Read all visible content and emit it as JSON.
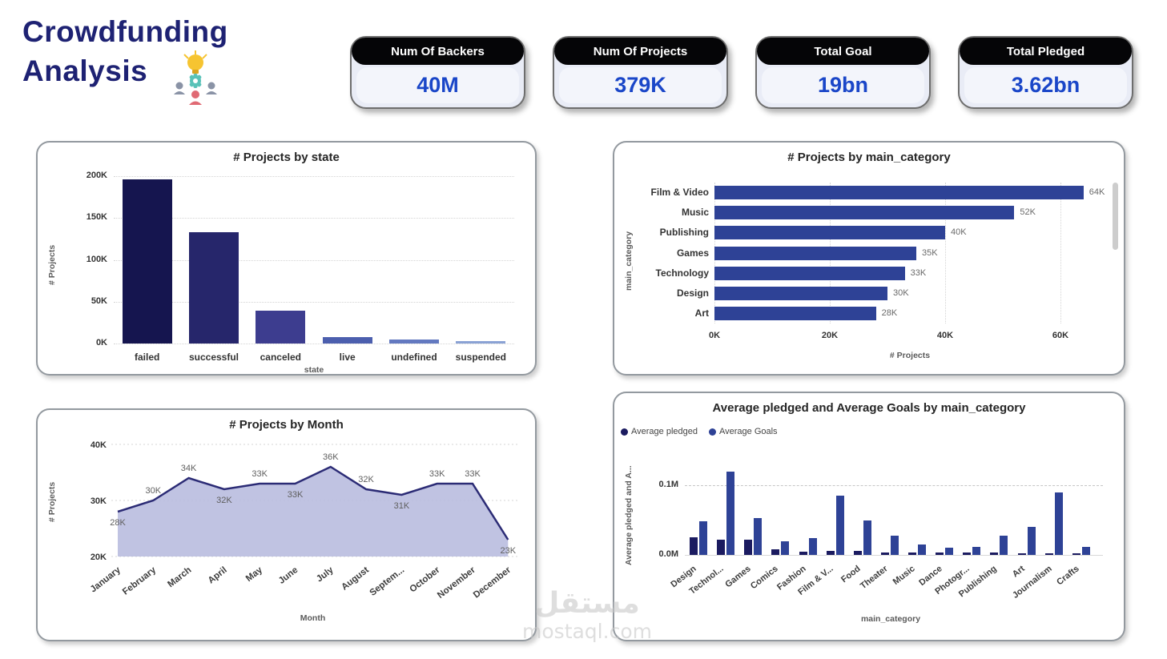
{
  "header": {
    "title_line1": "Crowdfunding",
    "title_line2": "Analysis",
    "kpis": [
      {
        "label": "Num Of Backers",
        "value": "40M"
      },
      {
        "label": "Num Of Projects",
        "value": "379K"
      },
      {
        "label": "Total Goal",
        "value": "19bn"
      },
      {
        "label": "Total Pledged",
        "value": "3.62bn"
      }
    ]
  },
  "watermark": {
    "arabic": "مستقل",
    "latin": "mostaql.com"
  },
  "colors": {
    "title_navy": "#1e2273",
    "kpi_value_blue": "#1a46c8",
    "kpi_header_bg": "#050507",
    "bar_main": "#2e4296",
    "line": "#2b2b75",
    "area_fill": "#b9bddf",
    "state_bar_colors": [
      "#15154f",
      "#26266b",
      "#3d3d8f",
      "#4c5fae",
      "#6379c0",
      "#8aa2d4"
    ]
  },
  "chart_data": [
    {
      "id": "projects_by_state",
      "type": "bar",
      "title": "# Projects by state",
      "xlabel": "state",
      "ylabel": "# Projects",
      "categories": [
        "failed",
        "successful",
        "canceled",
        "live",
        "undefined",
        "suspended"
      ],
      "values": [
        196,
        133,
        39,
        8,
        5,
        3
      ],
      "unit": "K",
      "ylim": [
        0,
        200
      ],
      "ytick_values": [
        0,
        50,
        100,
        150,
        200
      ],
      "ytick_labels": [
        "0K",
        "50K",
        "100K",
        "150K",
        "200K"
      ],
      "grid": true,
      "legend_position": "none"
    },
    {
      "id": "projects_by_main_category",
      "type": "bar",
      "orientation": "horizontal",
      "title": "# Projects by main_category",
      "xlabel": "# Projects",
      "ylabel": "main_category",
      "categories": [
        "Film & Video",
        "Music",
        "Publishing",
        "Games",
        "Technology",
        "Design",
        "Art"
      ],
      "values": [
        64,
        52,
        40,
        35,
        33,
        30,
        28
      ],
      "data_labels": [
        "64K",
        "52K",
        "40K",
        "35K",
        "33K",
        "30K",
        "28K"
      ],
      "unit": "K",
      "xlim": [
        0,
        67
      ],
      "xtick_values": [
        0,
        20,
        40,
        60
      ],
      "xtick_labels": [
        "0K",
        "20K",
        "40K",
        "60K"
      ],
      "grid": true,
      "legend_position": "none",
      "scrollbar": true
    },
    {
      "id": "projects_by_month",
      "type": "area",
      "title": "# Projects by Month",
      "xlabel": "Month",
      "ylabel": "# Projects",
      "categories": [
        "January",
        "February",
        "March",
        "April",
        "May",
        "June",
        "July",
        "August",
        "Septem...",
        "October",
        "November",
        "December"
      ],
      "values": [
        28,
        30,
        34,
        32,
        33,
        33,
        36,
        32,
        31,
        33,
        33,
        23
      ],
      "data_labels": [
        "28K",
        "30K",
        "34K",
        "32K",
        "33K",
        "33K",
        "36K",
        "32K",
        "31K",
        "33K",
        "33K",
        "23K"
      ],
      "label_positions": [
        "below",
        "above",
        "above",
        "below",
        "above",
        "below",
        "above",
        "above",
        "below",
        "above",
        "above",
        "below"
      ],
      "unit": "K",
      "ylim": [
        20,
        40
      ],
      "ytick_values": [
        20,
        30,
        40
      ],
      "ytick_labels": [
        "20K",
        "30K",
        "40K"
      ],
      "grid": true,
      "legend_position": "none"
    },
    {
      "id": "avg_pledged_goals_by_main_category",
      "type": "bar",
      "grouped": true,
      "title": "Average pledged and Average Goals by main_category",
      "xlabel": "main_category",
      "ylabel": "Average pledged and A...",
      "categories": [
        "Design",
        "Technol...",
        "Games",
        "Comics",
        "Fashion",
        "Film & V...",
        "Food",
        "Theater",
        "Music",
        "Dance",
        "Photogr...",
        "Publishing",
        "Art",
        "Journalism",
        "Crafts"
      ],
      "series": [
        {
          "name": "Average pledged",
          "color": "#1b1b60",
          "values": [
            0.025,
            0.022,
            0.022,
            0.008,
            0.005,
            0.006,
            0.006,
            0.004,
            0.003,
            0.004,
            0.003,
            0.003,
            0.002,
            0.002,
            0.002
          ]
        },
        {
          "name": "Average Goals",
          "color": "#2e4296",
          "values": [
            0.048,
            0.12,
            0.053,
            0.02,
            0.024,
            0.085,
            0.05,
            0.028,
            0.015,
            0.01,
            0.012,
            0.028,
            0.04,
            0.09,
            0.011
          ]
        }
      ],
      "unit": "M",
      "ylim": [
        0,
        0.125
      ],
      "ytick_values": [
        0,
        0.1
      ],
      "ytick_labels": [
        "0.0M",
        "0.1M"
      ],
      "grid": true,
      "legend_position": "top-left"
    }
  ]
}
